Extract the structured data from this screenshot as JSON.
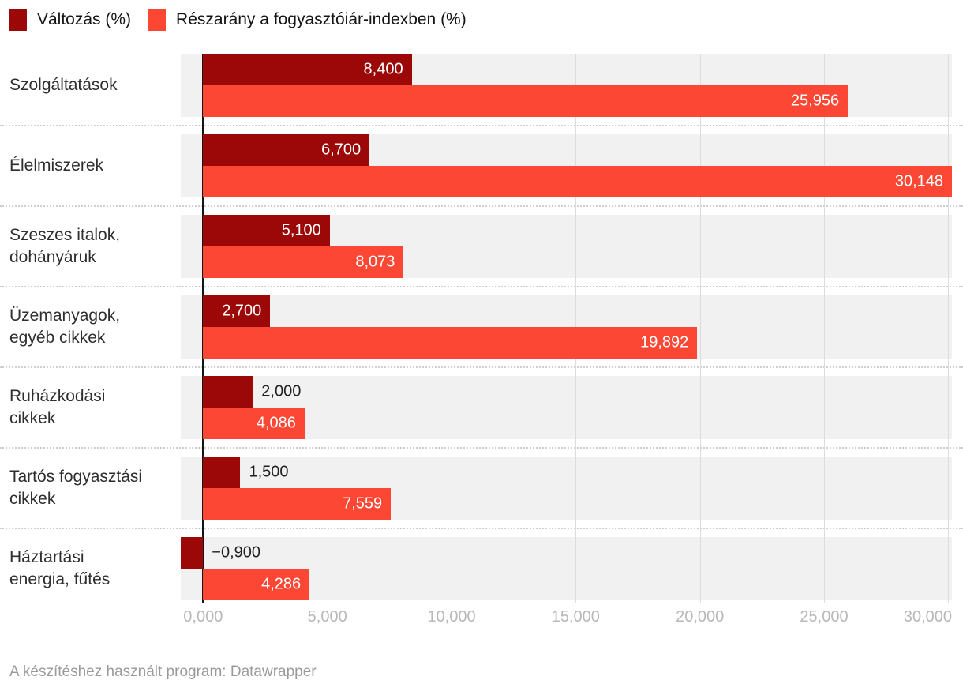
{
  "legend": {
    "items": [
      {
        "label": "Változás (%)",
        "color": "#9c0808"
      },
      {
        "label": "Részarány a fogyasztóiár-indexben (%)",
        "color": "#fb4734"
      }
    ]
  },
  "chart_data": {
    "type": "bar",
    "orientation": "horizontal",
    "title": "",
    "categories": [
      "Szolgáltatások",
      "Élelmiszerek",
      "Szeszes italok,\ndohányáruk",
      "Üzemanyagok,\negyéb cikkek",
      "Ruházkodási\ncikkek",
      "Tartós fogyasztási\ncikkek",
      "Háztartási\nenergia, fűtés"
    ],
    "series": [
      {
        "name": "Változás (%)",
        "color": "#9c0808",
        "values": [
          8.4,
          6.7,
          5.1,
          2.7,
          2.0,
          1.5,
          -0.9
        ],
        "labels": [
          "8,400",
          "6,700",
          "5,100",
          "2,700",
          "2,000",
          "1,500",
          "−0,900"
        ]
      },
      {
        "name": "Részarány a fogyasztóiár-indexben (%)",
        "color": "#fb4734",
        "values": [
          25.956,
          30.148,
          8.073,
          19.892,
          4.086,
          7.559,
          4.286
        ],
        "labels": [
          "25,956",
          "30,148",
          "8,073",
          "19,892",
          "4,086",
          "7,559",
          "4,286"
        ]
      }
    ],
    "x_axis": {
      "min": -0.9,
      "max": 30.148,
      "ticks": [
        0,
        5,
        10,
        15,
        20,
        25,
        30
      ],
      "tick_labels": [
        "0,000",
        "5,000",
        "10,000",
        "15,000",
        "20,000",
        "25,000",
        "30,000"
      ],
      "grid": true,
      "zero_line": true
    },
    "legend_position": "top",
    "plot_background": "#f1f1f1"
  },
  "footer": {
    "text": "A készítéshez használt program: Datawrapper"
  }
}
